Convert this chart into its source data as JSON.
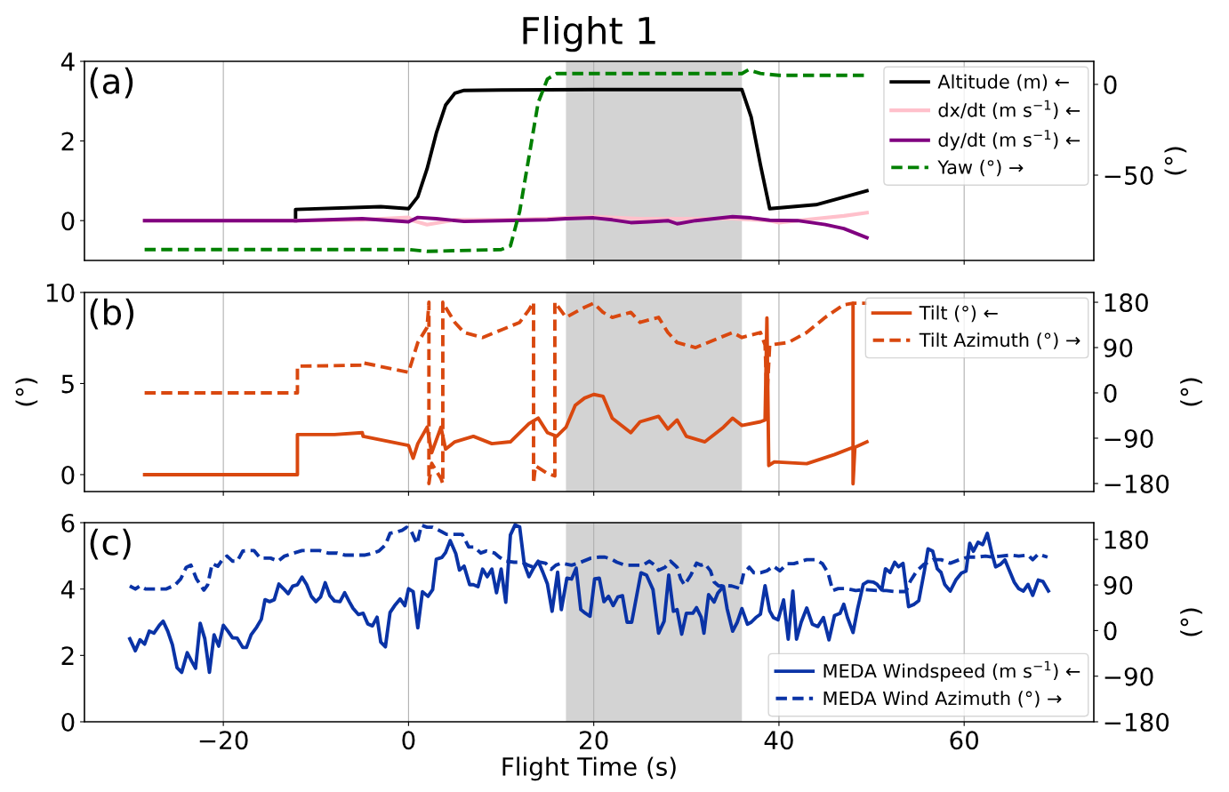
{
  "chart_data": [
    {
      "type": "line",
      "title": "Flight 1",
      "y2label": "(°)",
      "annotations": [
        "(a)"
      ],
      "xlim": [
        -35,
        74
      ],
      "ylim": [
        -1,
        4
      ],
      "yticks": [
        0,
        2,
        4
      ],
      "y2lim": [
        -97,
        12.7
      ],
      "y2ticks": [
        0,
        {
          "value": -50,
          "label": "−50"
        }
      ],
      "grid": "x",
      "legend": "top right",
      "tick_labels": "y",
      "bands": [
        {
          "axis": "x",
          "from": 17,
          "to": 36,
          "color": "#d3d3d3"
        }
      ],
      "series": [
        {
          "name": "Altitude (m) ←",
          "color": "#000000",
          "line_style": "solid",
          "x": [
            -12.2,
            -12.2,
            -3,
            0,
            1,
            2,
            3,
            4,
            5,
            6,
            10,
            20,
            30,
            36,
            37,
            38,
            39,
            44,
            49.5
          ],
          "values": [
            0,
            0.28,
            0.35,
            0.3,
            0.6,
            1.3,
            2.2,
            2.9,
            3.2,
            3.27,
            3.28,
            3.29,
            3.29,
            3.29,
            2.6,
            1.4,
            0.3,
            0.4,
            0.75
          ]
        },
        {
          "name": "dx/dt (m s$^{−1}$) ←",
          "color": "#ffc0cb",
          "line_style": "solid",
          "x": [
            -28.5,
            -12,
            -5,
            0,
            0.5,
            2,
            5,
            10,
            15,
            20,
            25,
            30,
            35,
            39,
            40,
            44,
            47,
            49.5
          ],
          "values": [
            0,
            0,
            0.02,
            0.08,
            0,
            -0.1,
            0.02,
            0.02,
            0.05,
            0.1,
            0.05,
            0.05,
            0.05,
            0,
            -0.05,
            0.05,
            0.12,
            0.2
          ]
        },
        {
          "name": "dy/dt (m s$^{−1}$) ←",
          "color": "#800080",
          "line_style": "solid",
          "x": [
            -28.5,
            -12,
            -5,
            0,
            1,
            3,
            6,
            10,
            15,
            17,
            20,
            22,
            24,
            26,
            28,
            29,
            31,
            33,
            35,
            37,
            39,
            42,
            45,
            47,
            49.5
          ],
          "values": [
            0,
            0,
            0.05,
            -0.03,
            0.08,
            0.05,
            -0.02,
            0,
            0.02,
            0.05,
            0.07,
            0.02,
            -0.05,
            -0.03,
            0,
            -0.08,
            0,
            0.05,
            0.1,
            0.07,
            0.01,
            0,
            -0.1,
            -0.2,
            -0.43
          ]
        },
        {
          "name": "Yaw (°) →",
          "color": "#008000",
          "line_style": "dashed",
          "axis": "y2",
          "x": [
            -28.5,
            0,
            2,
            10,
            11,
            12,
            13,
            14,
            15,
            16,
            20,
            30,
            36,
            36.7,
            38,
            40,
            49.5
          ],
          "values": [
            -91,
            -91,
            -92,
            -91,
            -89,
            -70,
            -40,
            -10,
            3,
            6,
            6,
            6,
            6,
            8,
            6,
            5,
            5
          ]
        }
      ]
    },
    {
      "type": "line",
      "ylabel": "(°)",
      "y2label": "(°)",
      "annotations": [
        "(b)"
      ],
      "xlim": [
        -35,
        74
      ],
      "ylim": [
        -0.93,
        10
      ],
      "yticks": [
        0,
        5,
        10
      ],
      "y2lim": [
        -196,
        199.5
      ],
      "y2ticks": [
        {
          "value": -180,
          "label": "−180"
        },
        {
          "value": -90,
          "label": "−90"
        },
        0,
        90,
        180
      ],
      "grid": "x",
      "legend": "top right",
      "tick_labels": "y",
      "bands": [
        {
          "axis": "x",
          "from": 17,
          "to": 36,
          "color": "#d3d3d3"
        }
      ],
      "series": [
        {
          "name": "Tilt (°) ←",
          "color": "#d9480f",
          "line_style": "solid",
          "x": [
            -28.5,
            -12,
            -12,
            -8,
            -5,
            -4.9,
            0,
            0.5,
            1,
            2,
            2.5,
            3.5,
            4,
            5,
            7,
            9,
            11,
            13,
            14,
            15,
            16,
            17,
            18,
            19,
            20,
            21,
            22,
            24,
            25,
            27,
            28,
            29,
            30,
            32,
            34,
            35,
            36,
            38,
            38.5,
            38.7,
            38.9,
            39.5,
            43,
            46,
            48,
            48,
            48,
            48.2,
            49.5
          ],
          "values": [
            0,
            0,
            2.2,
            2.2,
            2.3,
            2.1,
            1.6,
            0.9,
            1.7,
            2.6,
            1.2,
            2.6,
            1.4,
            1.8,
            2.1,
            1.7,
            1.8,
            2.8,
            3.1,
            2.3,
            2.1,
            2.6,
            3.8,
            4.2,
            4.4,
            4.3,
            3.1,
            2.3,
            2.9,
            3.2,
            2.5,
            3.0,
            2.1,
            1.8,
            2.6,
            3.1,
            2.7,
            2.9,
            3.0,
            8.6,
            0.5,
            0.7,
            0.6,
            1.1,
            1.5,
            9.4,
            -0.5,
            1.5,
            1.8
          ]
        },
        {
          "name": "Tilt Azimuth (°) →",
          "color": "#d9480f",
          "line_style": "dashed",
          "axis": "y2",
          "x": [
            -28.5,
            -12,
            -12,
            -5,
            -5,
            0,
            1,
            2,
            2.2,
            2.2,
            2.5,
            3.5,
            3.7,
            3.7,
            4,
            5,
            6,
            8,
            10,
            12,
            13,
            13.5,
            13.5,
            13.7,
            15,
            15.8,
            15.8,
            16,
            17,
            19,
            20,
            21,
            22,
            24,
            25,
            27,
            28,
            29,
            30,
            31,
            33,
            35,
            36,
            38,
            38.5,
            38.7,
            39,
            41,
            43,
            45,
            47,
            48,
            49.5
          ],
          "values": [
            0,
            0,
            53,
            55,
            60,
            41,
            100,
            130,
            180,
            -180,
            -140,
            -170,
            -180,
            180,
            170,
            140,
            120,
            110,
            125,
            140,
            165,
            180,
            -180,
            -145,
            -160,
            -165,
            180,
            175,
            150,
            170,
            178,
            160,
            150,
            160,
            140,
            150,
            120,
            100,
            95,
            90,
            105,
            120,
            110,
            120,
            95,
            -10,
            95,
            100,
            120,
            150,
            175,
            178,
            178
          ]
        }
      ]
    },
    {
      "type": "line",
      "xlabel": "Flight Time (s)",
      "y2label": "(°)",
      "annotations": [
        "(c)"
      ],
      "xlim": [
        -35,
        74
      ],
      "xticks": [
        {
          "value": -20,
          "label": "−20"
        },
        0,
        20,
        40,
        60
      ],
      "ylim": [
        0,
        6
      ],
      "yticks": [
        0,
        2,
        4,
        6
      ],
      "y2lim": [
        -180,
        213
      ],
      "y2ticks": [
        {
          "value": -180,
          "label": "−180"
        },
        {
          "value": -90,
          "label": "−90"
        },
        0,
        90,
        180
      ],
      "grid": "x",
      "legend": "bottom right",
      "bands": [
        {
          "axis": "x",
          "from": 17,
          "to": 36,
          "color": "#d3d3d3"
        }
      ],
      "series": [
        {
          "name": "MEDA Windspeed (m s$^{−1}$) ←",
          "color": "#0a33a6",
          "line_style": "solid",
          "x": [
            -30.1,
            -29.5,
            -29.0,
            -28.5,
            -28.0,
            -27.5,
            -26.9,
            -26.5,
            -26.0,
            -25.5,
            -25.0,
            -24.5,
            -23.9,
            -23.4,
            -23.0,
            -22.5,
            -22.0,
            -21.5,
            -21.0,
            -20.5,
            -20.0,
            -19.5,
            -19.0,
            -18.5,
            -17.9,
            -17.5,
            -17.0,
            -16.4,
            -15.9,
            -15.5,
            -15.0,
            -14.5,
            -14.0,
            -13.5,
            -13.0,
            -12.5,
            -12.0,
            -11.5,
            -11.0,
            -10.5,
            -10.0,
            -9.5,
            -9.0,
            -8.5,
            -8.0,
            -7.4,
            -6.9,
            -6.4,
            -6.0,
            -5.4,
            -4.9,
            -4.4,
            -3.9,
            -3.4,
            -3.0,
            -2.5,
            -2.0,
            -1.5,
            -0.9,
            -0.4,
            0.0,
            0.5,
            1.0,
            1.5,
            2.1,
            2.6,
            3.0,
            3.6,
            4.0,
            4.5,
            5.1,
            5.5,
            6.0,
            6.6,
            7.0,
            7.5,
            8.0,
            8.5,
            9.0,
            9.5,
            10.0,
            10.5,
            11.0,
            11.5,
            12.0,
            12.5,
            13.0,
            13.5,
            14.0,
            14.5,
            15.0,
            15.5,
            16.1,
            16.5,
            17.1,
            17.6,
            18.1,
            18.6,
            19.1,
            19.6,
            20.1,
            20.6,
            21.1,
            21.6,
            22.1,
            22.6,
            23.1,
            23.6,
            24.1,
            25.1,
            25.7,
            26.4,
            27.0,
            27.6,
            28.1,
            28.6,
            29.0,
            29.5,
            30.0,
            30.7,
            31.1,
            31.6,
            31.9,
            32.4,
            33.0,
            33.4,
            34.0,
            34.4,
            35.0,
            35.5,
            36.0,
            36.6,
            37.0,
            37.5,
            38.0,
            38.5,
            39.0,
            39.4,
            39.9,
            40.5,
            41.0,
            41.5,
            41.9,
            42.4,
            43.0,
            43.6,
            44.2,
            44.8,
            45.4,
            46.0,
            46.6,
            47.0,
            47.4,
            48.0,
            48.5,
            49.1,
            49.6,
            50.2,
            50.6,
            51.1,
            51.5,
            52.0,
            52.5,
            52.9,
            53.4,
            54.0,
            54.6,
            55.1,
            55.7,
            56.1,
            56.6,
            57.1,
            57.5,
            57.9,
            58.5,
            59.1,
            59.7,
            60.2,
            60.6,
            61.0,
            61.5,
            62.0,
            62.5,
            63.0,
            63.4,
            63.9,
            64.4,
            65.0,
            65.4,
            65.9,
            66.4,
            66.9,
            67.4,
            68.0,
            68.5,
            69.1
          ],
          "values": [
            2.5,
            2.14,
            2.47,
            2.34,
            2.73,
            2.67,
            2.91,
            3.03,
            2.73,
            2.32,
            1.63,
            1.49,
            2.08,
            1.81,
            1.61,
            2.97,
            2.5,
            1.49,
            2.62,
            2.28,
            2.91,
            2.73,
            2.53,
            2.52,
            2.24,
            2.24,
            2.62,
            2.85,
            3.09,
            3.68,
            3.62,
            3.68,
            4.15,
            4.01,
            3.86,
            4.09,
            4.13,
            4.36,
            4.13,
            3.78,
            3.62,
            3.76,
            4.19,
            3.8,
            3.64,
            3.62,
            3.89,
            3.62,
            3.42,
            3.23,
            3.27,
            2.95,
            2.89,
            3.15,
            2.4,
            2.26,
            3.29,
            3.5,
            3.7,
            3.5,
            4.01,
            3.92,
            2.83,
            3.92,
            3.78,
            3.98,
            4.9,
            4.95,
            5.1,
            5.46,
            5.07,
            4.57,
            4.69,
            4.13,
            4.13,
            4.07,
            4.6,
            4.37,
            4.6,
            3.89,
            4.6,
            3.6,
            5.63,
            5.93,
            5.87,
            4.75,
            4.37,
            4.63,
            4.84,
            4.51,
            4.15,
            3.33,
            4.51,
            3.38,
            4.33,
            4.3,
            4.63,
            3.38,
            3.27,
            3.18,
            4.31,
            4.33,
            3.62,
            3.78,
            3.5,
            3.76,
            3.8,
            3.0,
            3.0,
            4.49,
            4.42,
            3.98,
            2.67,
            3.03,
            4.42,
            3.33,
            3.38,
            2.64,
            3.27,
            3.27,
            3.44,
            3.15,
            2.67,
            3.83,
            3.61,
            3.88,
            4.08,
            3.41,
            2.73,
            3.0,
            3.41,
            2.94,
            3.0,
            3.14,
            3.24,
            4.1,
            3.34,
            3.14,
            3.07,
            3.67,
            2.49,
            3.94,
            2.49,
            3.0,
            3.43,
            2.94,
            2.87,
            3.14,
            2.47,
            3.2,
            3.27,
            3.54,
            3.14,
            2.69,
            3.41,
            4.14,
            4.23,
            4.21,
            4.14,
            3.97,
            4.61,
            4.5,
            4.81,
            4.67,
            4.77,
            3.47,
            3.54,
            3.65,
            4.54,
            5.21,
            5.14,
            4.61,
            4.5,
            4.14,
            3.94,
            4.27,
            4.48,
            4.54,
            5.38,
            5.14,
            5.41,
            5.34,
            5.68,
            5.07,
            4.67,
            4.74,
            4.88,
            4.48,
            4.21,
            4.01,
            3.94,
            4.14,
            3.81,
            4.27,
            4.23,
            3.94
          ]
        },
        {
          "name": "MEDA Wind Azimuth (°) →",
          "color": "#0a33a6",
          "line_style": "dashed",
          "axis": "y2",
          "x": [
            -30.1,
            -29.5,
            -29.0,
            -28.4,
            -26.2,
            -25.2,
            -24.6,
            -24.0,
            -23.5,
            -22.9,
            -22.1,
            -21.7,
            -21.2,
            -20.6,
            -20.1,
            -19.6,
            -19.0,
            -18.5,
            -17.9,
            -17.3,
            -16.7,
            -16.0,
            -14.9,
            -14.1,
            -13.4,
            -11.5,
            -9.6,
            -8.7,
            -7.7,
            -6.9,
            -4.7,
            -3.8,
            -3.2,
            -2.5,
            -2.0,
            -1.2,
            -0.7,
            -0.2,
            0.3,
            0.9,
            1.4,
            2.0,
            2.6,
            3.5,
            4.1,
            5.0,
            5.8,
            6.5,
            7.1,
            7.8,
            8.4,
            9.3,
            9.8,
            10.5,
            11.4,
            12.3,
            12.9,
            13.5,
            14.2,
            14.8,
            15.4,
            15.9,
            16.5,
            17.6,
            18.6,
            19.7,
            20.6,
            21.2,
            21.9,
            22.5,
            23.4,
            24.5,
            25.3,
            26.0,
            26.6,
            27.0,
            27.7,
            28.3,
            29.0,
            29.4,
            29.8,
            30.5,
            31.1,
            31.6,
            32.0,
            32.6,
            33.0,
            33.5,
            34.2,
            34.9,
            35.8,
            36.2,
            36.8,
            37.3,
            38.0,
            38.7,
            39.4,
            40.1,
            40.9,
            41.6,
            42.3,
            43.0,
            44.0,
            44.7,
            45.3,
            45.8,
            46.4,
            47.3,
            48.3,
            49.2,
            50.6,
            51.6,
            52.5,
            53.7,
            54.2,
            54.9,
            55.6,
            56.6,
            57.5,
            58.5,
            59.5,
            60.4,
            61.4,
            62.3,
            63.1,
            64.0,
            65.0,
            65.9,
            66.9,
            67.4,
            68.0,
            69.0
          ],
          "values": [
            88,
            82,
            88,
            82,
            82,
            90,
            102,
            125,
            129,
            102,
            80,
            90,
            132,
            127,
            140,
            147,
            137,
            137,
            157,
            158,
            158,
            143,
            143,
            137,
            147,
            158,
            158,
            153,
            153,
            149,
            149,
            153,
            157,
            169,
            192,
            195,
            198,
            204,
            196,
            171,
            208,
            204,
            204,
            196,
            190,
            190,
            190,
            165,
            165,
            153,
            157,
            153,
            145,
            137,
            135,
            135,
            129,
            125,
            135,
            133,
            121,
            129,
            133,
            129,
            135,
            143,
            145,
            145,
            141,
            135,
            129,
            129,
            129,
            137,
            129,
            119,
            125,
            137,
            125,
            102,
            90,
            110,
            133,
            129,
            132,
            118,
            96,
            88,
            89,
            88,
            83,
            114,
            125,
            114,
            114,
            118,
            127,
            118,
            132,
            132,
            136,
            140,
            140,
            132,
            114,
            79,
            83,
            83,
            79,
            81,
            79,
            79,
            77,
            77,
            98,
            118,
            130,
            140,
            140,
            133,
            140,
            145,
            145,
            147,
            145,
            147,
            149,
            147,
            149,
            140,
            151,
            145
          ]
        }
      ]
    }
  ]
}
